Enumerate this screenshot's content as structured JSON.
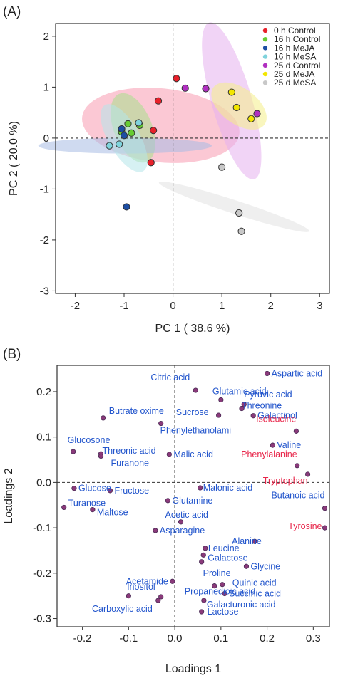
{
  "chart_data": [
    {
      "type": "scatter",
      "panel_label": "(A)",
      "xlabel": "PC 1 ( 38.6 %)",
      "ylabel": "PC 2 ( 20.0 %)",
      "xlim": [
        -2.4,
        3.2
      ],
      "ylim": [
        -3.05,
        2.25
      ],
      "xticks": [
        "-2",
        "-1",
        "0",
        "1",
        "2",
        "3"
      ],
      "xtick_values": [
        -2,
        -1,
        0,
        1,
        2,
        3
      ],
      "yticks": [
        "2",
        "1",
        "0",
        "-1",
        "-2",
        "-3"
      ],
      "ytick_values": [
        2,
        1,
        0,
        -1,
        -2,
        -3
      ],
      "reference_lines": {
        "x": 0,
        "y": 0,
        "style": "dashed"
      },
      "legend_position": "top-right",
      "series": [
        {
          "name": "0 h Control",
          "color": "#e8202a",
          "ellipse_color": "#f79ab0",
          "points": [
            [
              0.07,
              1.17
            ],
            [
              -0.3,
              0.73
            ],
            [
              -0.45,
              -0.48
            ],
            [
              -0.4,
              0.15
            ]
          ]
        },
        {
          "name": "16 h Control",
          "color": "#66cc33",
          "ellipse_color": "#a8e08a",
          "points": [
            [
              -0.92,
              0.28
            ],
            [
              -0.85,
              0.1
            ],
            [
              -1.05,
              0.12
            ],
            [
              -0.68,
              0.25
            ]
          ]
        },
        {
          "name": "16 h MeJA",
          "color": "#1d4ea3",
          "ellipse_color": "#a8bce3",
          "points": [
            [
              -0.95,
              -1.35
            ],
            [
              -1.05,
              0.18
            ],
            [
              -1.0,
              0.05
            ]
          ]
        },
        {
          "name": "16 h MeSA",
          "color": "#7fd3dc",
          "ellipse_color": "#b5e6ea",
          "points": [
            [
              -1.3,
              -0.15
            ],
            [
              -1.1,
              -0.12
            ],
            [
              -0.7,
              0.3
            ]
          ]
        },
        {
          "name": "25 d Control",
          "color": "#b02fc0",
          "ellipse_color": "#e6b0ee",
          "points": [
            [
              0.25,
              0.98
            ],
            [
              0.67,
              0.97
            ],
            [
              1.72,
              0.48
            ]
          ]
        },
        {
          "name": "25 d MeJA",
          "color": "#f2e600",
          "ellipse_color": "#f4ef88",
          "points": [
            [
              1.2,
              0.9
            ],
            [
              1.3,
              0.6
            ],
            [
              1.6,
              0.38
            ]
          ]
        },
        {
          "name": "25 d MeSA",
          "color": "#c8c8c8",
          "ellipse_color": "#e2e2e2",
          "points": [
            [
              1.0,
              -0.57
            ],
            [
              1.35,
              -1.47
            ],
            [
              1.4,
              -1.83
            ]
          ]
        }
      ]
    },
    {
      "type": "scatter",
      "panel_label": "(B)",
      "xlabel": "Loadings 1",
      "ylabel": "Loadings 2",
      "xlim": [
        -0.255,
        0.335
      ],
      "ylim": [
        -0.318,
        0.258
      ],
      "xticks": [
        "-0.2",
        "-0.1",
        "0.0",
        "0.1",
        "0.2",
        "0.3"
      ],
      "xtick_values": [
        -0.2,
        -0.1,
        0.0,
        0.1,
        0.2,
        0.3
      ],
      "yticks": [
        "0.2",
        "0.1",
        "0.0",
        "-0.1",
        "-0.2",
        "-0.3"
      ],
      "ytick_values": [
        0.2,
        0.1,
        0.0,
        -0.1,
        -0.2,
        -0.3
      ],
      "reference_lines": {
        "x": 0,
        "y": 0,
        "style": "dashed"
      },
      "point_color": "#8a3a7a",
      "label_color": "#2255cc",
      "highlight_color": "#e8264a",
      "points": [
        {
          "label": "Aspartic acid",
          "x": 0.2,
          "y": 0.24,
          "dx": 6,
          "dy": 4,
          "anchor": "start",
          "highlight": false
        },
        {
          "label": "Citric acid",
          "x": 0.045,
          "y": 0.203,
          "dx": -8,
          "dy": -14,
          "anchor": "end",
          "highlight": false
        },
        {
          "label": "Glutamic acid",
          "x": 0.1,
          "y": 0.182,
          "dx": -12,
          "dy": -8,
          "anchor": "start",
          "highlight": false
        },
        {
          "label": "Pyruvic acid",
          "x": 0.15,
          "y": 0.172,
          "dx": 0,
          "dy": -10,
          "anchor": "start",
          "highlight": false
        },
        {
          "label": "Threonine",
          "x": 0.145,
          "y": 0.163,
          "dx": 0,
          "dy": 0,
          "anchor": "start",
          "highlight": false
        },
        {
          "label": "Sucrose",
          "x": 0.095,
          "y": 0.148,
          "dx": -14,
          "dy": 0,
          "anchor": "end",
          "highlight": false
        },
        {
          "label": "Galactinol",
          "x": 0.17,
          "y": 0.147,
          "dx": 6,
          "dy": 4,
          "anchor": "start",
          "highlight": false
        },
        {
          "label": "Butrate oxime",
          "x": -0.155,
          "y": 0.142,
          "dx": 8,
          "dy": -6,
          "anchor": "start",
          "highlight": false
        },
        {
          "label": "Phenylethanolami",
          "x": -0.03,
          "y": 0.13,
          "dx": -1,
          "dy": 14,
          "anchor": "start",
          "highlight": false
        },
        {
          "label": "Isoleucine",
          "x": 0.263,
          "y": 0.113,
          "dx": 0,
          "dy": -13,
          "anchor": "end",
          "highlight": true
        },
        {
          "label": "Glucosone",
          "x": -0.22,
          "y": 0.068,
          "dx": -8,
          "dy": -12,
          "anchor": "start",
          "highlight": false
        },
        {
          "label": "Threonic acid",
          "x": -0.16,
          "y": 0.063,
          "dx": 2,
          "dy": 0,
          "anchor": "start",
          "highlight": false
        },
        {
          "label": "Malic acid",
          "x": -0.012,
          "y": 0.062,
          "dx": 6,
          "dy": 4,
          "anchor": "start",
          "highlight": false
        },
        {
          "label": "Furanone",
          "x": -0.16,
          "y": 0.058,
          "dx": 14,
          "dy": 14,
          "anchor": "start",
          "highlight": false
        },
        {
          "label": "Valine",
          "x": 0.212,
          "y": 0.082,
          "dx": 6,
          "dy": 4,
          "anchor": "start",
          "highlight": false
        },
        {
          "label": "Phenylalanine",
          "x": 0.265,
          "y": 0.037,
          "dx": 0,
          "dy": -12,
          "anchor": "end",
          "highlight": true
        },
        {
          "label": "Tryptophan",
          "x": 0.288,
          "y": 0.018,
          "dx": 0,
          "dy": 13,
          "anchor": "end",
          "highlight": true
        },
        {
          "label": "Glucose",
          "x": -0.218,
          "y": -0.013,
          "dx": 6,
          "dy": 4,
          "anchor": "start",
          "highlight": false
        },
        {
          "label": "Fructose",
          "x": -0.14,
          "y": -0.018,
          "dx": 6,
          "dy": 4,
          "anchor": "start",
          "highlight": false
        },
        {
          "label": "Malonic acid",
          "x": 0.055,
          "y": -0.012,
          "dx": 4,
          "dy": 4,
          "anchor": "start",
          "highlight": false
        },
        {
          "label": "Turanose",
          "x": -0.24,
          "y": -0.055,
          "dx": 6,
          "dy": -2,
          "anchor": "start",
          "highlight": false
        },
        {
          "label": "Maltose",
          "x": -0.178,
          "y": -0.06,
          "dx": 6,
          "dy": 8,
          "anchor": "start",
          "highlight": false
        },
        {
          "label": "Glutamine",
          "x": -0.015,
          "y": -0.04,
          "dx": 6,
          "dy": 4,
          "anchor": "start",
          "highlight": false
        },
        {
          "label": "Butanoic acid",
          "x": 0.325,
          "y": -0.057,
          "dx": 0,
          "dy": -14,
          "anchor": "end",
          "highlight": false
        },
        {
          "label": "Acetic acid",
          "x": 0.013,
          "y": -0.087,
          "dx": -22,
          "dy": -6,
          "anchor": "start",
          "highlight": false
        },
        {
          "label": "Asparagine",
          "x": -0.042,
          "y": -0.106,
          "dx": 6,
          "dy": 4,
          "anchor": "start",
          "highlight": false
        },
        {
          "label": "Tyrosine",
          "x": 0.325,
          "y": -0.1,
          "dx": -4,
          "dy": 2,
          "anchor": "end",
          "highlight": true
        },
        {
          "label": "Alanine",
          "x": 0.173,
          "y": -0.13,
          "dx": -32,
          "dy": 4,
          "anchor": "start",
          "highlight": false
        },
        {
          "label": "Leucine",
          "x": 0.066,
          "y": -0.145,
          "dx": 4,
          "dy": 4,
          "anchor": "start",
          "highlight": false
        },
        {
          "label": "Galactose",
          "x": 0.062,
          "y": -0.16,
          "dx": 6,
          "dy": 8,
          "anchor": "start",
          "highlight": false
        },
        {
          "label": "Glycine",
          "x": 0.155,
          "y": -0.185,
          "dx": 6,
          "dy": 4,
          "anchor": "start",
          "highlight": false
        },
        {
          "label": "Proline",
          "x": 0.058,
          "y": -0.175,
          "dx": 2,
          "dy": 20,
          "anchor": "start",
          "highlight": false
        },
        {
          "label": "Acetamide",
          "x": -0.005,
          "y": -0.218,
          "dx": -6,
          "dy": 4,
          "anchor": "end",
          "highlight": false
        },
        {
          "label": "Propanedioic acid",
          "x": 0.086,
          "y": -0.228,
          "dx": -42,
          "dy": 12,
          "anchor": "start",
          "highlight": false
        },
        {
          "label": "Quinic acid",
          "x": 0.103,
          "y": -0.225,
          "dx": 14,
          "dy": 2,
          "anchor": "start",
          "highlight": false
        },
        {
          "label": "Inositol",
          "x": -0.03,
          "y": -0.252,
          "dx": -8,
          "dy": -10,
          "anchor": "end",
          "highlight": false
        },
        {
          "label": "Succinic acid",
          "x": 0.108,
          "y": -0.245,
          "dx": 6,
          "dy": 4,
          "anchor": "start",
          "highlight": false
        },
        {
          "label": "Carboxylic acid",
          "x": -0.036,
          "y": -0.26,
          "dx": -8,
          "dy": 16,
          "anchor": "end",
          "highlight": false
        },
        {
          "label": "Galacturonic acid",
          "x": 0.063,
          "y": -0.26,
          "dx": 4,
          "dy": 10,
          "anchor": "start",
          "highlight": false
        },
        {
          "label": "Lactose",
          "x": 0.058,
          "y": -0.285,
          "dx": 8,
          "dy": 4,
          "anchor": "start",
          "highlight": false
        },
        {
          "label": "",
          "x": -0.1,
          "y": -0.25,
          "dx": 0,
          "dy": 0,
          "anchor": "start",
          "highlight": false
        }
      ]
    }
  ]
}
